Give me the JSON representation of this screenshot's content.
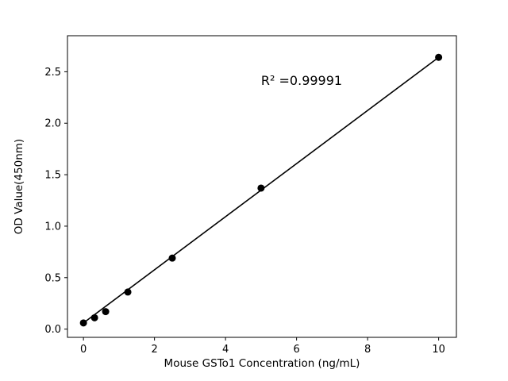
{
  "figure": {
    "background_color": "#ffffff",
    "foreground_color": "#000000"
  },
  "chart_data": {
    "type": "scatter",
    "title": "",
    "xlabel": "Mouse GSTo1 Concentration (ng/mL)",
    "ylabel": "OD Value(450nm)",
    "annotation": {
      "text": "R² =0.99991",
      "x": 6.1,
      "y": 2.41
    },
    "x": [
      0,
      0.3125,
      0.625,
      1.25,
      2.5,
      5,
      10
    ],
    "y": [
      0.06,
      0.11,
      0.17,
      0.36,
      0.69,
      1.37,
      2.64
    ],
    "fit_line": {
      "x": [
        0,
        10
      ],
      "y": [
        0.06,
        2.64
      ]
    },
    "xticks": [
      0,
      2,
      4,
      6,
      8,
      10
    ],
    "xticklabels": [
      "0",
      "2",
      "4",
      "6",
      "8",
      "10"
    ],
    "yticks": [
      0.0,
      0.5,
      1.0,
      1.5,
      2.0,
      2.5
    ],
    "yticklabels": [
      "0.0",
      "0.5",
      "1.0",
      "1.5",
      "2.0",
      "2.5"
    ],
    "xlim": [
      -0.45,
      10.5
    ],
    "ylim": [
      -0.08,
      2.85
    ],
    "grid": false,
    "legend": null,
    "marker_color": "#000000",
    "line_color": "#000000"
  }
}
